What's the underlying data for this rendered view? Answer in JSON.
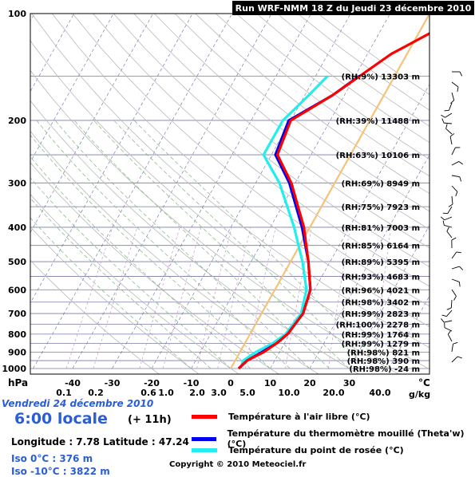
{
  "header": {
    "run_title": "Run WRF-NMM 18 Z du Jeudi 23 décembre 2010"
  },
  "chart_data": {
    "type": "line",
    "title": "Run WRF-NMM 18 Z du Jeudi 23 décembre 2010",
    "ylabel": "hPa",
    "xlabel": "°C",
    "ylim": [
      1000,
      100
    ],
    "xlim": [
      -40,
      30
    ],
    "y_ticks": [
      100,
      200,
      300,
      400,
      500,
      600,
      700,
      800,
      900,
      1000
    ],
    "x_ticks": [
      -40,
      -30,
      -20,
      -10,
      0,
      10,
      20,
      30
    ],
    "mixing_ratio_ticks": [
      "0.1",
      "0.2",
      "0.6",
      "1.0",
      "2.0",
      "3.0",
      "5.0",
      "10.0",
      "20.0",
      "40.0"
    ],
    "mixing_ratio_unit": "g/kg",
    "series": [
      {
        "name": "Température à l'air libre (°C)",
        "color": "#ff0000",
        "points": [
          [
            1000,
            2
          ],
          [
            950,
            3
          ],
          [
            900,
            6
          ],
          [
            850,
            8
          ],
          [
            800,
            9.5
          ],
          [
            700,
            10.5
          ],
          [
            600,
            9
          ],
          [
            500,
            4.5
          ],
          [
            400,
            -1.5
          ],
          [
            300,
            -11
          ],
          [
            250,
            -18.5
          ],
          [
            200,
            -20
          ],
          [
            170,
            -13
          ],
          [
            130,
            -4
          ],
          [
            110,
            4.5
          ]
        ]
      },
      {
        "name": "Température du thermomètre mouillé (Theta'w) (°C)",
        "color": "#0000ee",
        "points": [
          [
            1000,
            2
          ],
          [
            950,
            3
          ],
          [
            900,
            5.5
          ],
          [
            850,
            8
          ],
          [
            800,
            9.5
          ],
          [
            700,
            10.5
          ],
          [
            600,
            9
          ],
          [
            500,
            4.5
          ],
          [
            400,
            -2
          ],
          [
            300,
            -11.5
          ],
          [
            250,
            -19
          ],
          [
            200,
            -20.5
          ],
          [
            170,
            -13
          ],
          [
            150,
            -9
          ]
        ]
      },
      {
        "name": "Température du point de rosée (°C)",
        "color": "#22eeee",
        "points": [
          [
            1000,
            2.5
          ],
          [
            950,
            2
          ],
          [
            900,
            4
          ],
          [
            850,
            7
          ],
          [
            800,
            9
          ],
          [
            700,
            10
          ],
          [
            600,
            8
          ],
          [
            500,
            3
          ],
          [
            400,
            -4
          ],
          [
            300,
            -14
          ],
          [
            250,
            -22
          ],
          [
            200,
            -22
          ],
          [
            170,
            -19
          ],
          [
            150,
            -17
          ]
        ]
      }
    ],
    "levels": [
      {
        "label": "(RH:9%) 13303 m",
        "p": 150
      },
      {
        "label": "(RH:39%) 11488 m",
        "p": 200
      },
      {
        "label": "(RH:63%) 10106 m",
        "p": 250
      },
      {
        "label": "(RH:69%) 8949 m",
        "p": 300
      },
      {
        "label": "(RH:75%) 7923 m",
        "p": 350
      },
      {
        "label": "(RH:81%) 7003 m",
        "p": 400
      },
      {
        "label": "(RH:85%) 6164 m",
        "p": 450
      },
      {
        "label": "(RH:89%) 5395 m",
        "p": 500
      },
      {
        "label": "(RH:93%) 4683 m",
        "p": 550
      },
      {
        "label": "(RH:96%) 4021 m",
        "p": 600
      },
      {
        "label": "(RH:98%) 3402 m",
        "p": 650
      },
      {
        "label": "(RH:99%) 2823 m",
        "p": 700
      },
      {
        "label": "(RH:100%) 2278 m",
        "p": 750
      },
      {
        "label": "(RH:99%) 1764 m",
        "p": 800
      },
      {
        "label": "(RH:99%) 1279 m",
        "p": 850
      },
      {
        "label": "(RH:98%) 821 m",
        "p": 900
      },
      {
        "label": "(RH:98%) 390 m",
        "p": 950
      },
      {
        "label": "(RH:98%) -24 m",
        "p": 1000
      }
    ],
    "freezing_line_color": "#f5c27a",
    "grid": true
  },
  "info": {
    "date": "Vendredi 24 décembre 2010",
    "time": "6:00 locale",
    "offset": "(+ 11h)",
    "coords": "Longitude : 7.78  Latitude : 47.24",
    "iso0": "Iso 0°C : 376 m",
    "iso10": "Iso -10°C : 3822 m",
    "copyright": "Copyright © 2010 Meteociel.fr"
  },
  "units": {
    "pressure": "hPa",
    "temperature": "°C",
    "mixing": "g/kg"
  },
  "legend": [
    {
      "label": "Température à l'air libre (°C)",
      "color": "#ff0000"
    },
    {
      "label": "Température du thermomètre mouillé (Theta'w) (°C)",
      "color": "#0000ee"
    },
    {
      "label": "Température du point de rosée (°C)",
      "color": "#22eeee"
    }
  ]
}
